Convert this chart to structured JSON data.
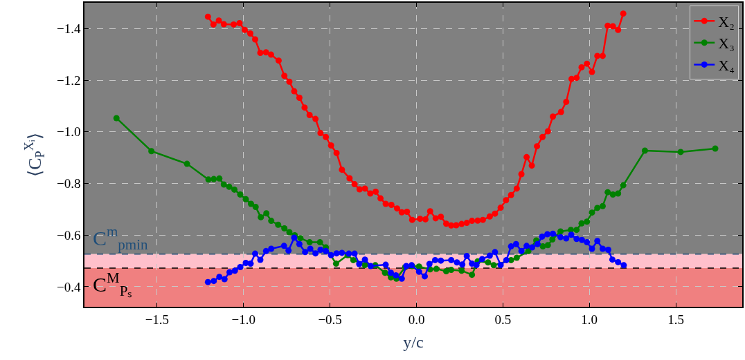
{
  "chart_data": {
    "type": "line",
    "xlabel": "y/c",
    "ylabel": "⟨C$_{P}$$^{Xᵢ}$⟩",
    "xlim": [
      -1.92,
      1.884
    ],
    "ylim": [
      -0.322,
      -1.5
    ],
    "xticks": [
      {
        "value": -1.5,
        "label": "−1.5"
      },
      {
        "value": -1.0,
        "label": "−1.0"
      },
      {
        "value": -0.5,
        "label": "−0.5"
      },
      {
        "value": 0.0,
        "label": "0.0"
      },
      {
        "value": 0.5,
        "label": "0.5"
      },
      {
        "value": 1.0,
        "label": "1.0"
      },
      {
        "value": 1.5,
        "label": "1.5"
      }
    ],
    "yticks": [
      {
        "value": -1.4,
        "label": "−1.4"
      },
      {
        "value": -1.2,
        "label": "−1.2"
      },
      {
        "value": -1.0,
        "label": "−1.0"
      },
      {
        "value": -0.8,
        "label": "−0.8"
      },
      {
        "value": -0.6,
        "label": "−0.6"
      },
      {
        "value": -0.4,
        "label": "−0.4"
      }
    ],
    "grid": true,
    "legend": "top right",
    "marker": "circle",
    "line_style": "solid",
    "bands": [
      {
        "axis": "y",
        "from": -1.5,
        "to": -0.526,
        "color": "#808080"
      },
      {
        "axis": "y",
        "from": -0.526,
        "to": -0.472,
        "color": "#ffc0cb"
      },
      {
        "axis": "y",
        "from": -0.472,
        "to": -0.322,
        "color": "#f08080"
      }
    ],
    "ref_lines": [
      {
        "axis": "y",
        "value": -0.526,
        "label": "C$^{m}$$_{pmin}$",
        "color": "#1f4e79",
        "line_style": "dashed"
      },
      {
        "axis": "y",
        "value": -0.472,
        "label": "C$^{M}$$_{Pₛ}$",
        "color": "#000000",
        "line_style": "dashed"
      }
    ],
    "series": [
      {
        "name": "X₂",
        "color": "#ff0000",
        "x": [
          -1.206,
          -1.174,
          -1.143,
          -1.114,
          -1.057,
          -1.023,
          -0.993,
          -0.961,
          -0.933,
          -0.903,
          -0.87,
          -0.841,
          -0.797,
          -0.764,
          -0.735,
          -0.707,
          -0.677,
          -0.647,
          -0.618,
          -0.584,
          -0.555,
          -0.524,
          -0.494,
          -0.462,
          -0.431,
          -0.387,
          -0.358,
          -0.329,
          -0.298,
          -0.267,
          -0.236,
          -0.208,
          -0.178,
          -0.145,
          -0.112,
          -0.085,
          -0.055,
          -0.025,
          0.021,
          0.052,
          0.079,
          0.111,
          0.141,
          0.172,
          0.201,
          0.23,
          0.261,
          0.291,
          0.321,
          0.354,
          0.384,
          0.424,
          0.454,
          0.487,
          0.518,
          0.547,
          0.58,
          0.607,
          0.637,
          0.667,
          0.697,
          0.729,
          0.76,
          0.789,
          0.836,
          0.866,
          0.897,
          0.926,
          0.955,
          0.986,
          1.015,
          1.046,
          1.077,
          1.106,
          1.136,
          1.166,
          1.196
        ],
        "values": [
          -1.446,
          -1.416,
          -1.431,
          -1.417,
          -1.416,
          -1.421,
          -1.395,
          -1.381,
          -1.358,
          -1.306,
          -1.308,
          -1.299,
          -1.276,
          -1.217,
          -1.194,
          -1.157,
          -1.132,
          -1.094,
          -1.065,
          -1.05,
          -0.995,
          -0.98,
          -0.947,
          -0.918,
          -0.853,
          -0.82,
          -0.797,
          -0.777,
          -0.78,
          -0.761,
          -0.768,
          -0.742,
          -0.721,
          -0.717,
          -0.703,
          -0.688,
          -0.69,
          -0.659,
          -0.663,
          -0.661,
          -0.692,
          -0.665,
          -0.671,
          -0.644,
          -0.637,
          -0.638,
          -0.643,
          -0.647,
          -0.655,
          -0.656,
          -0.659,
          -0.672,
          -0.683,
          -0.706,
          -0.735,
          -0.755,
          -0.78,
          -0.836,
          -0.902,
          -0.869,
          -0.944,
          -0.98,
          -1.002,
          -1.059,
          -1.077,
          -1.116,
          -1.205,
          -1.209,
          -1.25,
          -1.264,
          -1.232,
          -1.294,
          -1.294,
          -1.411,
          -1.409,
          -1.395,
          -1.458
        ]
      },
      {
        "name": "X₃",
        "color": "#008000",
        "x": [
          -1.735,
          -1.533,
          -1.327,
          -1.203,
          -1.172,
          -1.14,
          -1.114,
          -1.083,
          -1.053,
          -1.019,
          -0.987,
          -0.957,
          -0.93,
          -0.9,
          -0.868,
          -0.84,
          -0.8,
          -0.764,
          -0.735,
          -0.704,
          -0.671,
          -0.618,
          -0.558,
          -0.524,
          -0.465,
          -0.398,
          -0.365,
          -0.298,
          -0.238,
          -0.182,
          -0.148,
          -0.116,
          -0.065,
          -0.025,
          0.015,
          0.079,
          0.115,
          0.172,
          0.201,
          0.261,
          0.321,
          0.354,
          0.414,
          0.447,
          0.547,
          0.58,
          0.647,
          0.693,
          0.731,
          0.76,
          0.786,
          0.833,
          0.893,
          0.926,
          0.955,
          0.986,
          1.015,
          1.046,
          1.077,
          1.106,
          1.136,
          1.166,
          1.196,
          1.321,
          1.528,
          1.728
        ],
        "values": [
          -1.053,
          -0.925,
          -0.876,
          -0.815,
          -0.817,
          -0.819,
          -0.796,
          -0.787,
          -0.776,
          -0.757,
          -0.739,
          -0.721,
          -0.709,
          -0.669,
          -0.684,
          -0.655,
          -0.64,
          -0.626,
          -0.611,
          -0.599,
          -0.588,
          -0.572,
          -0.572,
          -0.552,
          -0.489,
          -0.522,
          -0.503,
          -0.484,
          -0.483,
          -0.454,
          -0.436,
          -0.431,
          -0.476,
          -0.48,
          -0.478,
          -0.467,
          -0.469,
          -0.46,
          -0.465,
          -0.462,
          -0.446,
          -0.498,
          -0.494,
          -0.483,
          -0.503,
          -0.512,
          -0.538,
          -0.579,
          -0.556,
          -0.561,
          -0.583,
          -0.614,
          -0.62,
          -0.62,
          -0.645,
          -0.652,
          -0.687,
          -0.705,
          -0.712,
          -0.766,
          -0.757,
          -0.761,
          -0.793,
          -0.927,
          -0.922,
          -0.935
        ]
      },
      {
        "name": "X₄",
        "color": "#0000ff",
        "x": [
          -1.206,
          -1.172,
          -1.14,
          -1.11,
          -1.081,
          -1.05,
          -1.019,
          -0.987,
          -0.959,
          -0.933,
          -0.903,
          -0.87,
          -0.84,
          -0.766,
          -0.74,
          -0.707,
          -0.677,
          -0.644,
          -0.614,
          -0.584,
          -0.555,
          -0.524,
          -0.494,
          -0.462,
          -0.431,
          -0.391,
          -0.358,
          -0.331,
          -0.298,
          -0.265,
          -0.178,
          -0.148,
          -0.119,
          -0.085,
          -0.059,
          -0.028,
          0.015,
          0.048,
          0.075,
          0.108,
          0.141,
          0.201,
          0.234,
          0.265,
          0.291,
          0.321,
          0.347,
          0.38,
          0.424,
          0.454,
          0.487,
          0.52,
          0.547,
          0.576,
          0.607,
          0.637,
          0.669,
          0.7,
          0.727,
          0.757,
          0.789,
          0.833,
          0.866,
          0.895,
          0.926,
          0.957,
          0.986,
          1.015,
          1.046,
          1.077,
          1.109,
          1.133,
          1.166,
          1.199
        ],
        "values": [
          -0.418,
          -0.422,
          -0.438,
          -0.429,
          -0.456,
          -0.462,
          -0.476,
          -0.492,
          -0.489,
          -0.528,
          -0.504,
          -0.538,
          -0.547,
          -0.558,
          -0.54,
          -0.59,
          -0.565,
          -0.534,
          -0.547,
          -0.529,
          -0.543,
          -0.538,
          -0.522,
          -0.529,
          -0.531,
          -0.528,
          -0.528,
          -0.488,
          -0.505,
          -0.48,
          -0.485,
          -0.454,
          -0.444,
          -0.431,
          -0.48,
          -0.483,
          -0.458,
          -0.44,
          -0.488,
          -0.503,
          -0.501,
          -0.503,
          -0.494,
          -0.486,
          -0.519,
          -0.489,
          -0.484,
          -0.507,
          -0.52,
          -0.534,
          -0.484,
          -0.503,
          -0.556,
          -0.565,
          -0.538,
          -0.558,
          -0.552,
          -0.565,
          -0.594,
          -0.603,
          -0.605,
          -0.592,
          -0.587,
          -0.601,
          -0.585,
          -0.581,
          -0.572,
          -0.547,
          -0.577,
          -0.547,
          -0.543,
          -0.505,
          -0.495,
          -0.483
        ]
      }
    ]
  }
}
